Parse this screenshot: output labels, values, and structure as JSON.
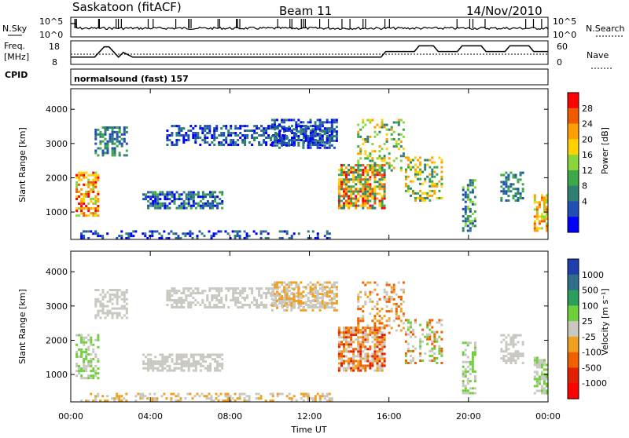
{
  "header": {
    "station": "Saskatoon (fitACF)",
    "beam": "Beam 11",
    "date": "14/Nov/2010"
  },
  "strip_nsky": {
    "label_left": "N.Sky",
    "label_right": "N.Search",
    "ticks_left": [
      "10^5",
      "10^0"
    ],
    "ticks_right": [
      "10^5",
      "10^0"
    ]
  },
  "strip_freq": {
    "label_left_1": "Freq.",
    "label_left_2": "[MHz]",
    "label_right": "Nave",
    "ticks_left": [
      "18",
      "8"
    ],
    "ticks_right": [
      "60",
      "0"
    ],
    "freq_steps": [
      [
        0,
        0.3
      ],
      [
        0.05,
        0.3
      ],
      [
        0.07,
        0.85
      ],
      [
        0.08,
        0.85
      ],
      [
        0.1,
        0.3
      ],
      [
        0.11,
        0.55
      ],
      [
        0.13,
        0.3
      ],
      [
        0.65,
        0.3
      ],
      [
        0.66,
        0.6
      ],
      [
        0.72,
        0.6
      ],
      [
        0.73,
        0.9
      ],
      [
        0.76,
        0.9
      ],
      [
        0.77,
        0.6
      ],
      [
        0.81,
        0.6
      ],
      [
        0.82,
        0.9
      ],
      [
        0.86,
        0.9
      ],
      [
        0.87,
        0.6
      ],
      [
        0.91,
        0.6
      ],
      [
        0.92,
        0.9
      ],
      [
        0.96,
        0.9
      ],
      [
        0.97,
        0.6
      ],
      [
        1,
        0.6
      ]
    ]
  },
  "cpid": {
    "label": "CPID",
    "mode": "normalsound (fast) 157"
  },
  "chart_data": [
    {
      "type": "heatmap",
      "quantity": "Power",
      "ylabel": "Slant Range [km]",
      "ylim": [
        200,
        4600
      ],
      "yticks": [
        "1000",
        "2000",
        "3000",
        "4000"
      ],
      "colorbar_label": "Power [dB]",
      "colorbar_ticks": [
        "28",
        "24",
        "20",
        "16",
        "12",
        "8",
        "4"
      ],
      "colorbar_colors": [
        "#ff0000",
        "#f05a00",
        "#ffa000",
        "#ffd200",
        "#8ad63a",
        "#3ca84a",
        "#2f7f74",
        "#1f4fb4",
        "#0000ff"
      ]
    },
    {
      "type": "heatmap",
      "quantity": "Velocity",
      "ylabel": "Slant Range [km]",
      "ylim": [
        200,
        4600
      ],
      "yticks": [
        "1000",
        "2000",
        "3000",
        "4000"
      ],
      "colorbar_label": "Velocity [m s⁻¹]",
      "colorbar_ticks": [
        "1000",
        "500",
        "100",
        "25",
        "-25",
        "-100",
        "-500",
        "-1000"
      ],
      "colorbar_colors": [
        "#1f3fae",
        "#2f6f8a",
        "#2b9f5a",
        "#6fcf3a",
        "#c8c8c0",
        "#f0a020",
        "#f06000",
        "#e02000",
        "#ff0000"
      ]
    }
  ],
  "xaxis": {
    "label": "Time UT",
    "ticks": [
      "00:00",
      "04:00",
      "08:00",
      "12:00",
      "16:00",
      "20:00",
      "00:00"
    ]
  }
}
